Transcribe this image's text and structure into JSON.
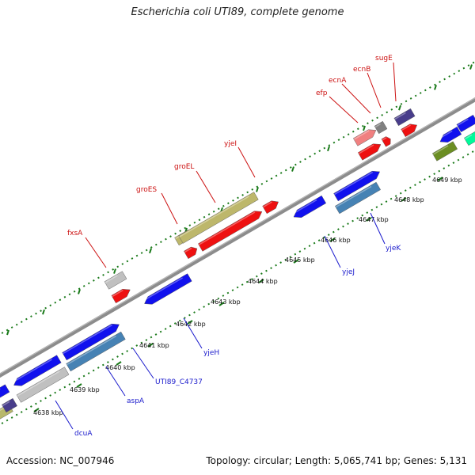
{
  "title": "Escherichia coli UTI89, complete genome",
  "footer": {
    "accession": "Accession: NC_007946",
    "summary": "Topology: circular; Length: 5,065,741 bp; Genes: 5,131"
  },
  "colors": {
    "axis": "#8c8c8c",
    "ticks": "#1a7a1a",
    "forward_label": "#cc1111",
    "reverse_label": "#1a1acc",
    "cds": "#1111ee",
    "cds_alt": "#4682b4",
    "rna": "#ee1111",
    "other": "#c0c0c0",
    "operon": "#bdb76b"
  },
  "axis_scale": {
    "unit": "kbp",
    "ticks": [
      "4638 kbp",
      "4639 kbp",
      "4640 kbp",
      "4641 kbp",
      "4642 kbp",
      "4643 kbp",
      "4644 kbp",
      "4645 kbp",
      "4646 kbp",
      "4647 kbp",
      "4648 kbp",
      "4649 kbp"
    ]
  },
  "labels": {
    "forward": [
      "fxsA",
      "groES",
      "groEL",
      "yjeI",
      "efp",
      "ecnA",
      "ecnB",
      "sugE"
    ],
    "reverse": [
      "dcuA",
      "aspA",
      "UTI89_C4737",
      "yjeH",
      "yjeJ",
      "yjeK"
    ]
  }
}
